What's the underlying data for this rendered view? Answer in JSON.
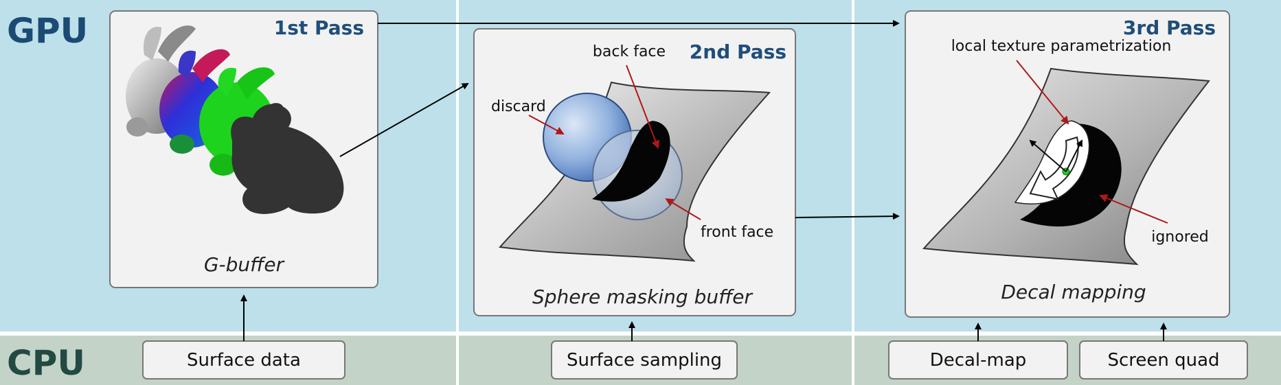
{
  "bands": {
    "gpu_label": "GPU",
    "cpu_label": "CPU"
  },
  "passes": [
    {
      "title": "1st Pass",
      "caption": "G-buffer"
    },
    {
      "title": "2nd Pass",
      "caption": "Sphere masking buffer",
      "annotations": {
        "discard": "discard",
        "back_face": "back face",
        "front_face": "front face"
      }
    },
    {
      "title": "3rd Pass",
      "caption": "Decal mapping",
      "annotations": {
        "local_param": "local texture parametrization",
        "ignored": "ignored"
      }
    }
  ],
  "cpu_inputs": {
    "surface_data": "Surface data",
    "surface_sampling": "Surface sampling",
    "decal_map": "Decal-map",
    "screen_quad": "Screen quad"
  },
  "colors": {
    "gpu_band": "#bde0ea",
    "cpu_band": "#c4d3c8",
    "panel_fill": "#f2f2f2",
    "title_blue": "#1f4e79",
    "gpu_text": "#1b4b73",
    "cpu_text": "#234a42",
    "annotation_arrow": "#b01818"
  }
}
